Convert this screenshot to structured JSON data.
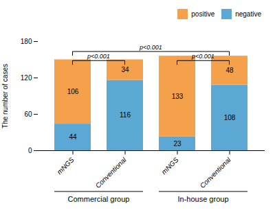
{
  "chart_data": {
    "type": "bar",
    "stacked": true,
    "data_labels": true,
    "legend": "upper right",
    "categories": [
      "mNGS",
      "Conventional",
      "mNGS",
      "Conventional"
    ],
    "groups": [
      "Commercial group",
      "Commercial group",
      "In-house group",
      "In-house group"
    ],
    "series": [
      {
        "name": "negative",
        "color": "#5BA8D4",
        "values": [
          44,
          116,
          23,
          108
        ]
      },
      {
        "name": "positive",
        "color": "#F5A04A",
        "values": [
          106,
          34,
          133,
          48
        ]
      }
    ],
    "ylabel": "The number of cases",
    "ylim": [
      0,
      180
    ],
    "yticks": [
      0,
      60,
      120,
      180
    ],
    "annotations": [
      {
        "text": "p<0.001",
        "from": 0,
        "to": 1,
        "y": 148
      },
      {
        "text": "p<0.001",
        "from": 2,
        "to": 3,
        "y": 148
      },
      {
        "text": "p<0.001",
        "from": 0,
        "to": 3,
        "y": 163
      }
    ]
  }
}
